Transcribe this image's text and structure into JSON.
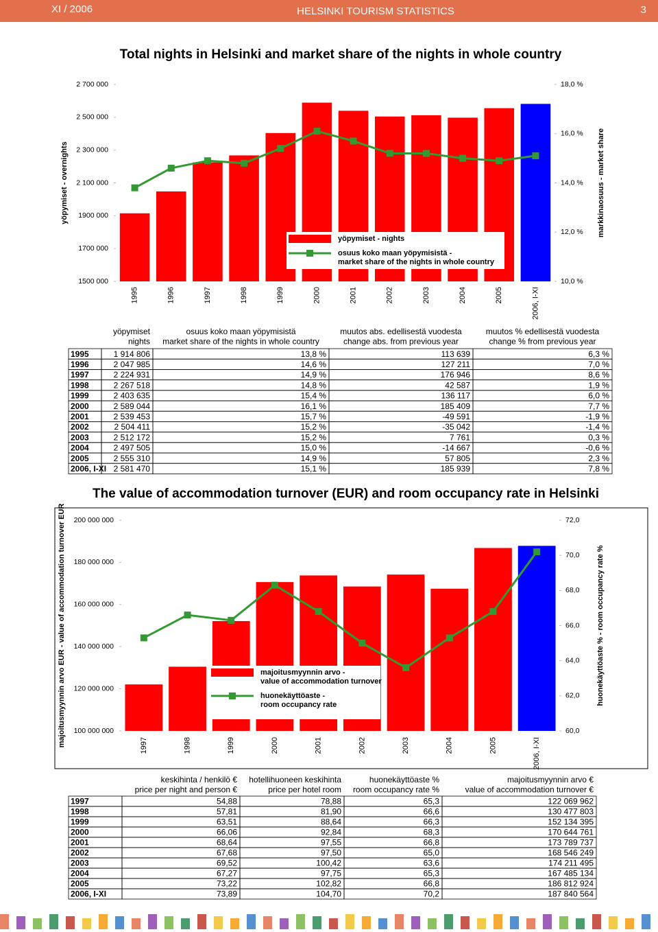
{
  "header": {
    "date": "XI / 2006",
    "title": "HELSINKI TOURISM STATISTICS",
    "page": "3"
  },
  "chart_data": [
    {
      "type": "combo",
      "title": "Total nights in Helsinki and market share of the nights in whole country",
      "ylabel": "yöpymiset - overnights",
      "y2label": "markkinaosuus - market share",
      "categories": [
        "1995",
        "1996",
        "1997",
        "1998",
        "1999",
        "2000",
        "2001",
        "2002",
        "2003",
        "2004",
        "2005",
        "2006, I-XI"
      ],
      "series": [
        {
          "name": "yöpymiset - nights",
          "type": "bar",
          "color": "#ff0000",
          "point_colors": [
            "#ff0000",
            "#ff0000",
            "#ff0000",
            "#ff0000",
            "#ff0000",
            "#ff0000",
            "#ff0000",
            "#ff0000",
            "#ff0000",
            "#ff0000",
            "#ff0000",
            "#0000ff"
          ],
          "values": [
            1914806,
            2047985,
            2224931,
            2267518,
            2403635,
            2589044,
            2539453,
            2504411,
            2512172,
            2497505,
            2555310,
            2581470
          ]
        },
        {
          "name": "osuus koko maan yöpymisistä -\nmarket share of the nights in whole country",
          "type": "line",
          "axis": "y2",
          "color": "#339933",
          "values": [
            13.8,
            14.6,
            14.9,
            14.8,
            15.4,
            16.1,
            15.7,
            15.2,
            15.2,
            15.0,
            14.9,
            15.1
          ]
        }
      ],
      "ylim": [
        1500000,
        2700000
      ],
      "yticks": [
        {
          "value": 1500000,
          "label": "1500 000"
        },
        {
          "value": 1700000,
          "label": "1700 000"
        },
        {
          "value": 1900000,
          "label": "1900 000"
        },
        {
          "value": 2100000,
          "label": "2 100 000"
        },
        {
          "value": 2300000,
          "label": "2 300 000"
        },
        {
          "value": 2500000,
          "label": "2 500 000"
        },
        {
          "value": 2700000,
          "label": "2 700 000"
        }
      ],
      "y2lim": [
        10,
        18
      ],
      "y2ticks": [
        {
          "value": 10,
          "label": "10,0 %"
        },
        {
          "value": 12,
          "label": "12,0 %"
        },
        {
          "value": 14,
          "label": "14,0 %"
        },
        {
          "value": 16,
          "label": "16,0 %"
        },
        {
          "value": 18,
          "label": "18,0 %"
        }
      ]
    },
    {
      "type": "combo",
      "title": "The value of accommodation turnover (EUR) and room occupancy rate in Helsinki",
      "ylabel": "majoitusmyynnin arvo EUR - value of accommodation turnover EUR",
      "y2label": "huonekäyttöaste % - room occupancy rate %",
      "categories": [
        "1997",
        "1998",
        "1999",
        "2000",
        "2001",
        "2002",
        "2003",
        "2004",
        "2005",
        "2006, I-XI"
      ],
      "series": [
        {
          "name": "majoitusmyynnin arvo -\nvalue of accommodation turnover",
          "type": "bar",
          "color": "#ff0000",
          "point_colors": [
            "#ff0000",
            "#ff0000",
            "#ff0000",
            "#ff0000",
            "#ff0000",
            "#ff0000",
            "#ff0000",
            "#ff0000",
            "#ff0000",
            "#0000ff"
          ],
          "values": [
            122069962,
            130477803,
            152134395,
            170644761,
            173789737,
            168546249,
            174211495,
            167485134,
            186812924,
            187840564
          ]
        },
        {
          "name": "huonekäyttöaste -\nroom occupancy rate",
          "type": "line",
          "axis": "y2",
          "color": "#339933",
          "values": [
            65.3,
            66.6,
            66.3,
            68.3,
            66.8,
            65.0,
            63.6,
            65.3,
            66.8,
            70.2
          ]
        }
      ],
      "ylim": [
        100000000,
        200000000
      ],
      "yticks": [
        {
          "value": 100000000,
          "label": "100 000 000"
        },
        {
          "value": 120000000,
          "label": "120 000 000"
        },
        {
          "value": 140000000,
          "label": "140 000 000"
        },
        {
          "value": 160000000,
          "label": "160 000 000"
        },
        {
          "value": 180000000,
          "label": "180 000 000"
        },
        {
          "value": 200000000,
          "label": "200 000 000"
        }
      ],
      "y2lim": [
        60,
        72
      ],
      "y2ticks": [
        {
          "value": 60,
          "label": "60,0"
        },
        {
          "value": 62,
          "label": "62,0"
        },
        {
          "value": 64,
          "label": "64,0"
        },
        {
          "value": 66,
          "label": "66,0"
        },
        {
          "value": 68,
          "label": "68,0"
        },
        {
          "value": 70,
          "label": "70,0"
        },
        {
          "value": 72,
          "label": "72,0"
        }
      ]
    }
  ],
  "tables": [
    {
      "columns": [
        "yöpymiset\nnights",
        "osuus koko maan yöpymisistä\nmarket share of the nights in whole country",
        "muutos abs. edellisestä vuodesta\nchange abs. from previous year",
        "muutos % edellisestä vuodesta\nchange % from previous year"
      ],
      "rows": [
        [
          "1995",
          "1 914 806",
          "13,8 %",
          "113 639",
          "6,3 %"
        ],
        [
          "1996",
          "2 047 985",
          "14,6 %",
          "127 211",
          "7,0 %"
        ],
        [
          "1997",
          "2 224 931",
          "14,9 %",
          "176 946",
          "8,6 %"
        ],
        [
          "1998",
          "2 267 518",
          "14,8 %",
          "42 587",
          "1,9 %"
        ],
        [
          "1999",
          "2 403 635",
          "15,4 %",
          "136 117",
          "6,0 %"
        ],
        [
          "2000",
          "2 589 044",
          "16,1 %",
          "185 409",
          "7,7 %"
        ],
        [
          "2001",
          "2 539 453",
          "15,7 %",
          "-49 591",
          "-1,9 %"
        ],
        [
          "2002",
          "2 504 411",
          "15,2 %",
          "-35 042",
          "-1,4 %"
        ],
        [
          "2003",
          "2 512 172",
          "15,2 %",
          "7 761",
          "0,3 %"
        ],
        [
          "2004",
          "2 497 505",
          "15,0 %",
          "-14 667",
          "-0,6 %"
        ],
        [
          "2005",
          "2 555 310",
          "14,9 %",
          "57 805",
          "2,3 %"
        ],
        [
          "2006, I-XI",
          "2 581 470",
          "15,1 %",
          "185 939",
          "7,8 %"
        ]
      ]
    },
    {
      "columns": [
        "keskihinta / henkilö €\nprice per night and person €",
        "hotellihuoneen keskihinta\nprice per hotel room",
        "huonekäyttöaste %\nroom occupancy rate %",
        "majoitusmyynnin arvo €\nvalue of accommodation turnover €"
      ],
      "rows": [
        [
          "1997",
          "54,88",
          "78,88",
          "65,3",
          "122 069 962"
        ],
        [
          "1998",
          "57,81",
          "81,90",
          "66,6",
          "130 477 803"
        ],
        [
          "1999",
          "63,51",
          "88,64",
          "66,3",
          "152 134 395"
        ],
        [
          "2000",
          "66,06",
          "92,84",
          "68,3",
          "170 644 761"
        ],
        [
          "2001",
          "68,64",
          "97,55",
          "66,8",
          "173 789 737"
        ],
        [
          "2002",
          "67,68",
          "97,50",
          "65,0",
          "168 546 249"
        ],
        [
          "2003",
          "69,52",
          "100,42",
          "63,6",
          "174 211 495"
        ],
        [
          "2004",
          "67,27",
          "97,75",
          "65,3",
          "167 485 134"
        ],
        [
          "2005",
          "73,22",
          "102,82",
          "66,8",
          "186 812 924"
        ],
        [
          "2006, I-XI",
          "73,89",
          "104,70",
          "70,2",
          "187 840 564"
        ]
      ]
    }
  ]
}
